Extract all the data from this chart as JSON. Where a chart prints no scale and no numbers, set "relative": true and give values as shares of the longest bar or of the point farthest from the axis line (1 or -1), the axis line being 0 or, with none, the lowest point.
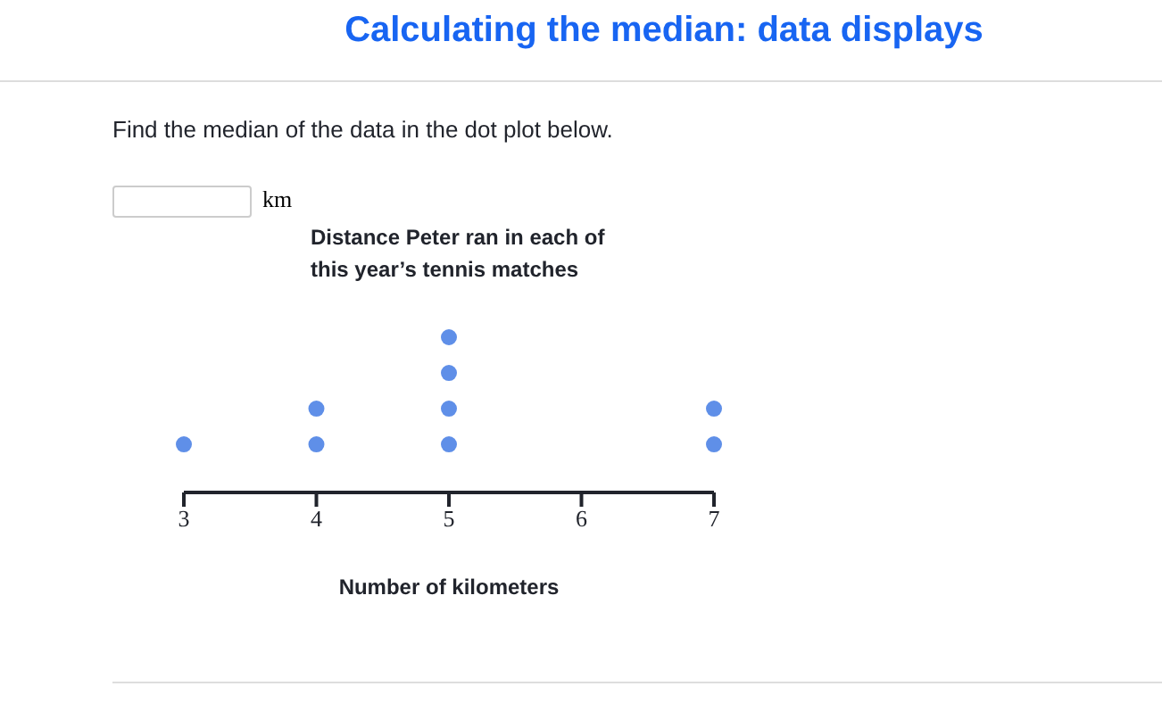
{
  "chart_data": {
    "type": "scatter",
    "title": "Distance Peter ran in each of this year’s tennis matches",
    "xlabel": "Number of kilometers",
    "annotations": [
      "Calculating the median: data displays",
      "Find the median of the data in the dot plot below.",
      "km"
    ],
    "x": [
      3,
      4,
      4,
      5,
      5,
      5,
      5,
      7,
      7
    ],
    "values": [
      0.31,
      0.31,
      0.54,
      0.31,
      0.54,
      0.77,
      1,
      0.31,
      0.54
    ],
    "relative": true,
    "color": "#5f8fe8",
    "marker": "circle",
    "xlim": [
      3,
      7
    ],
    "xticks": [
      3,
      4,
      5,
      6,
      7
    ]
  }
}
